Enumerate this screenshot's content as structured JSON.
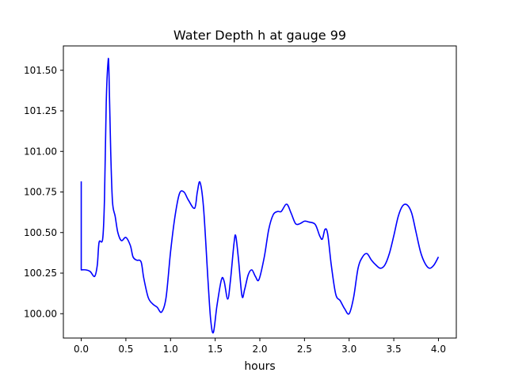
{
  "chart_data": {
    "type": "line",
    "title": "Water Depth h at gauge 99",
    "xlabel": "hours",
    "ylabel": "",
    "xlim": [
      -0.2,
      4.2
    ],
    "ylim": [
      99.85,
      101.65
    ],
    "xticks": [
      0.0,
      0.5,
      1.0,
      1.5,
      2.0,
      2.5,
      3.0,
      3.5,
      4.0
    ],
    "xtick_labels": [
      "0.0",
      "0.5",
      "1.0",
      "1.5",
      "2.0",
      "2.5",
      "3.0",
      "3.5",
      "4.0"
    ],
    "yticks": [
      100.0,
      100.25,
      100.5,
      100.75,
      101.0,
      101.25,
      101.5
    ],
    "ytick_labels": [
      "100.00",
      "100.25",
      "100.50",
      "100.75",
      "101.00",
      "101.25",
      "101.50"
    ],
    "grid": false,
    "series": [
      {
        "color": "#0000ff",
        "points": [
          [
            0.0,
            100.815
          ],
          [
            0.0,
            100.27
          ],
          [
            0.05,
            100.27
          ],
          [
            0.1,
            100.26
          ],
          [
            0.15,
            100.23
          ],
          [
            0.18,
            100.3
          ],
          [
            0.2,
            100.44
          ],
          [
            0.24,
            100.46
          ],
          [
            0.26,
            100.7
          ],
          [
            0.28,
            101.3
          ],
          [
            0.3,
            101.55
          ],
          [
            0.31,
            101.5
          ],
          [
            0.33,
            101.0
          ],
          [
            0.35,
            100.69
          ],
          [
            0.38,
            100.6
          ],
          [
            0.41,
            100.5
          ],
          [
            0.45,
            100.45
          ],
          [
            0.5,
            100.47
          ],
          [
            0.55,
            100.42
          ],
          [
            0.58,
            100.35
          ],
          [
            0.62,
            100.33
          ],
          [
            0.67,
            100.32
          ],
          [
            0.7,
            100.22
          ],
          [
            0.75,
            100.1
          ],
          [
            0.8,
            100.06
          ],
          [
            0.85,
            100.04
          ],
          [
            0.9,
            100.01
          ],
          [
            0.95,
            100.1
          ],
          [
            1.0,
            100.38
          ],
          [
            1.05,
            100.6
          ],
          [
            1.1,
            100.74
          ],
          [
            1.15,
            100.75
          ],
          [
            1.2,
            100.7
          ],
          [
            1.27,
            100.65
          ],
          [
            1.3,
            100.75
          ],
          [
            1.33,
            100.81
          ],
          [
            1.37,
            100.65
          ],
          [
            1.42,
            100.2
          ],
          [
            1.45,
            99.96
          ],
          [
            1.48,
            99.885
          ],
          [
            1.52,
            100.05
          ],
          [
            1.57,
            100.21
          ],
          [
            1.6,
            100.2
          ],
          [
            1.64,
            100.09
          ],
          [
            1.67,
            100.2
          ],
          [
            1.71,
            100.43
          ],
          [
            1.73,
            100.48
          ],
          [
            1.76,
            100.34
          ],
          [
            1.8,
            100.11
          ],
          [
            1.83,
            100.15
          ],
          [
            1.87,
            100.24
          ],
          [
            1.91,
            100.27
          ],
          [
            1.95,
            100.23
          ],
          [
            1.99,
            100.21
          ],
          [
            2.05,
            100.35
          ],
          [
            2.1,
            100.52
          ],
          [
            2.15,
            100.61
          ],
          [
            2.2,
            100.63
          ],
          [
            2.24,
            100.63
          ],
          [
            2.3,
            100.675
          ],
          [
            2.35,
            100.62
          ],
          [
            2.4,
            100.555
          ],
          [
            2.45,
            100.555
          ],
          [
            2.5,
            100.57
          ],
          [
            2.55,
            100.565
          ],
          [
            2.62,
            100.55
          ],
          [
            2.67,
            100.48
          ],
          [
            2.7,
            100.46
          ],
          [
            2.73,
            100.52
          ],
          [
            2.76,
            100.49
          ],
          [
            2.8,
            100.3
          ],
          [
            2.85,
            100.12
          ],
          [
            2.9,
            100.08
          ],
          [
            2.95,
            100.03
          ],
          [
            3.0,
            100.0
          ],
          [
            3.05,
            100.1
          ],
          [
            3.1,
            100.28
          ],
          [
            3.15,
            100.35
          ],
          [
            3.2,
            100.37
          ],
          [
            3.25,
            100.33
          ],
          [
            3.3,
            100.3
          ],
          [
            3.35,
            100.28
          ],
          [
            3.4,
            100.3
          ],
          [
            3.45,
            100.37
          ],
          [
            3.5,
            100.48
          ],
          [
            3.55,
            100.6
          ],
          [
            3.6,
            100.665
          ],
          [
            3.65,
            100.67
          ],
          [
            3.7,
            100.62
          ],
          [
            3.75,
            100.5
          ],
          [
            3.8,
            100.38
          ],
          [
            3.85,
            100.31
          ],
          [
            3.9,
            100.28
          ],
          [
            3.95,
            100.3
          ],
          [
            4.0,
            100.35
          ]
        ]
      }
    ]
  }
}
